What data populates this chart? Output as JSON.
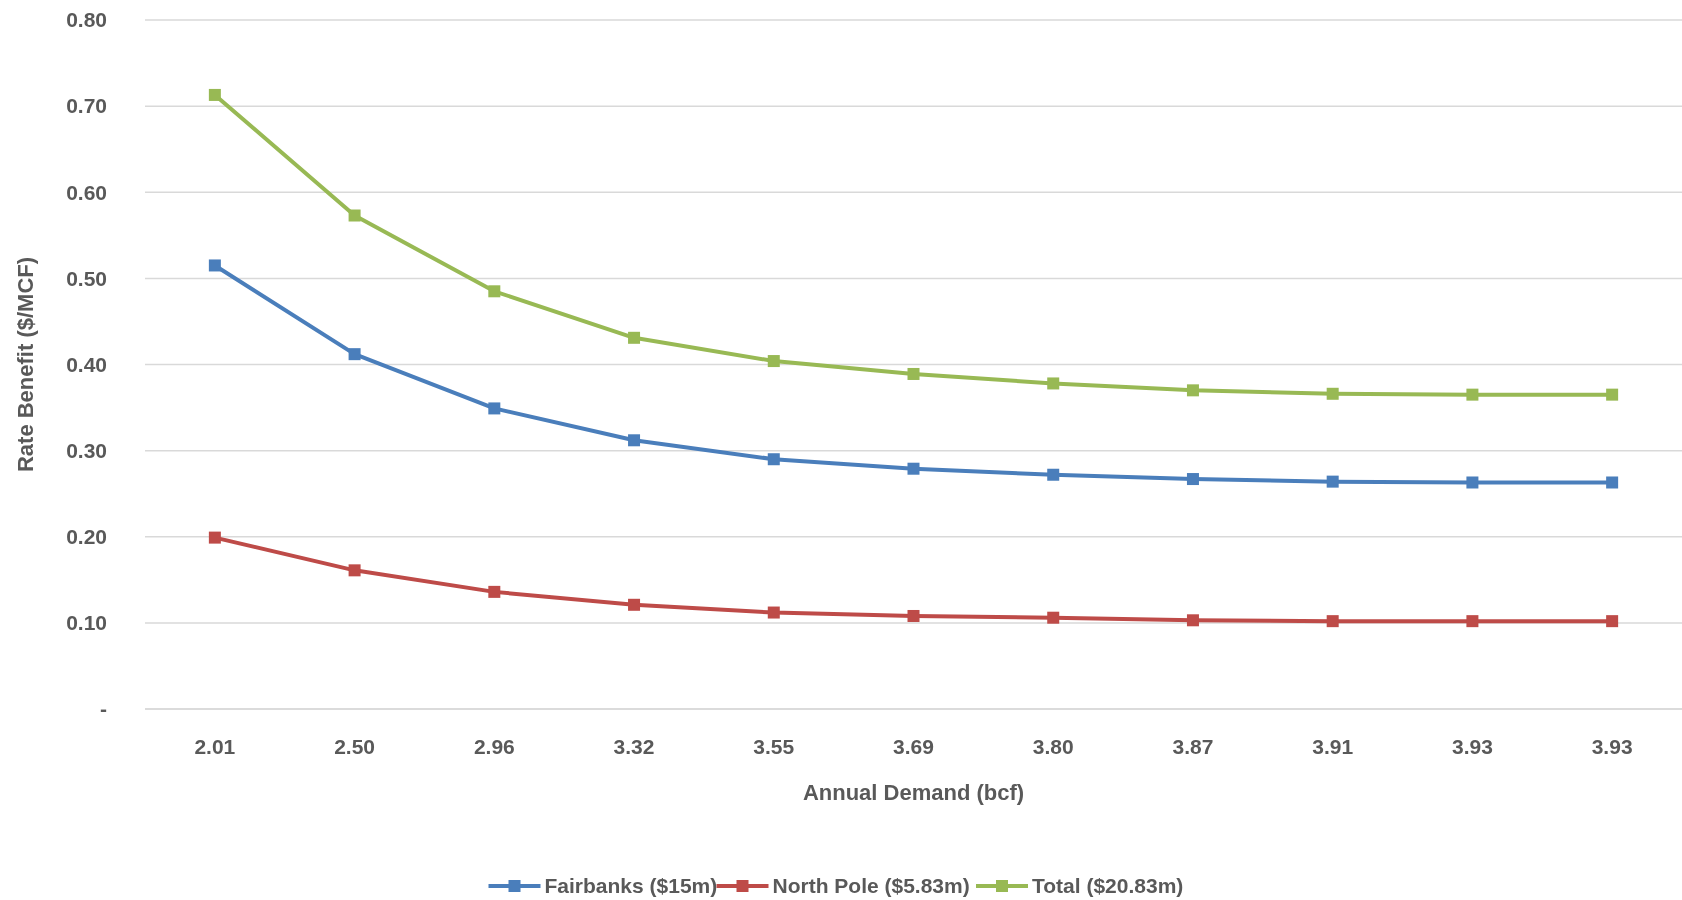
{
  "chart_data": {
    "type": "line",
    "xlabel": "Annual Demand (bcf)",
    "ylabel": "Rate Benefit ($/MCF)",
    "categories": [
      "2.01",
      "2.50",
      "2.96",
      "3.32",
      "3.55",
      "3.69",
      "3.80",
      "3.87",
      "3.91",
      "3.93",
      "3.93"
    ],
    "series": [
      {
        "name": "Fairbanks ($15m)",
        "color": "#4a7ebb",
        "values": [
          0.515,
          0.412,
          0.349,
          0.312,
          0.29,
          0.279,
          0.272,
          0.267,
          0.264,
          0.263,
          0.263
        ]
      },
      {
        "name": "North Pole ($5.83m)",
        "color": "#be4b48",
        "values": [
          0.199,
          0.161,
          0.136,
          0.121,
          0.112,
          0.108,
          0.106,
          0.103,
          0.102,
          0.102,
          0.102
        ]
      },
      {
        "name": "Total ($20.83m)",
        "color": "#98b954",
        "values": [
          0.713,
          0.573,
          0.485,
          0.431,
          0.404,
          0.389,
          0.378,
          0.37,
          0.366,
          0.365,
          0.365
        ]
      }
    ],
    "ylim": [
      0,
      0.8
    ],
    "yticks": [
      {
        "value": 0,
        "label": "-"
      },
      {
        "value": 0.1,
        "label": "0.10"
      },
      {
        "value": 0.2,
        "label": "0.20"
      },
      {
        "value": 0.3,
        "label": "0.30"
      },
      {
        "value": 0.4,
        "label": "0.40"
      },
      {
        "value": 0.5,
        "label": "0.50"
      },
      {
        "value": 0.6,
        "label": "0.60"
      },
      {
        "value": 0.7,
        "label": "0.70"
      },
      {
        "value": 0.8,
        "label": "0.80"
      }
    ],
    "grid": "y",
    "legend": "bottom",
    "marker": "square",
    "line_style": "solid"
  }
}
